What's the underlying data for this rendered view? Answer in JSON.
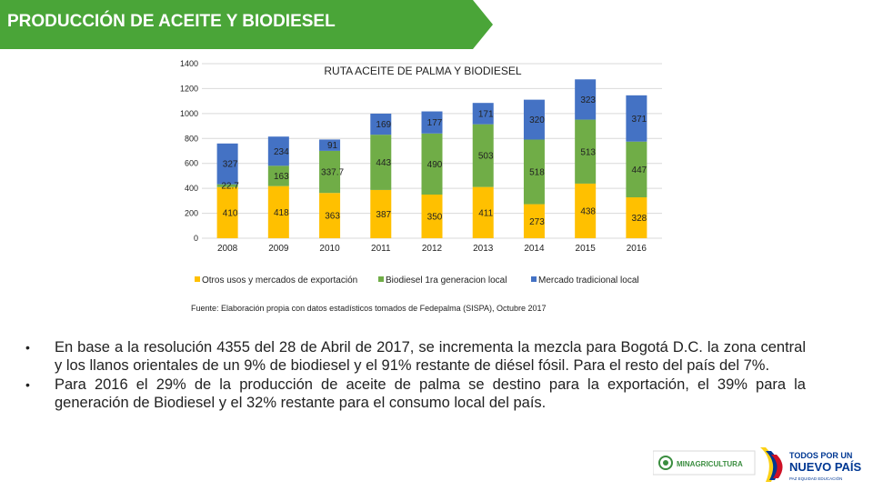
{
  "slide": {
    "title": "PRODUCCIÓN DE ACEITE Y BIODIESEL",
    "colors": {
      "title_bar": "#4aa538",
      "title_bar_light": "#7cc56a"
    }
  },
  "chart_data": {
    "type": "bar",
    "stacked": true,
    "title": "RUTA ACEITE DE PALMA Y BIODIESEL",
    "categories": [
      "2008",
      "2009",
      "2010",
      "2011",
      "2012",
      "2013",
      "2014",
      "2015",
      "2016"
    ],
    "series": [
      {
        "name": "Otros usos y mercados de exportación",
        "color": "#ffc000",
        "values": [
          410,
          418,
          363,
          387,
          350,
          411,
          273,
          438,
          328
        ]
      },
      {
        "name": "Biodiesel 1ra generacion local",
        "color": "#70ad47",
        "values": [
          22.7,
          163,
          337.7,
          443,
          490,
          503,
          518,
          513,
          447
        ]
      },
      {
        "name": "Mercado tradicional local",
        "color": "#4472c4",
        "values": [
          327,
          234,
          91,
          169,
          177,
          171,
          320,
          323,
          371
        ]
      }
    ],
    "value_labels": [
      [
        "410",
        "418",
        "363",
        "387",
        "350",
        "411",
        "273",
        "438",
        "328"
      ],
      [
        "22.7",
        "163",
        "337.7",
        "443",
        "490",
        "503",
        "518",
        "513",
        "447"
      ],
      [
        "327",
        "234",
        "91",
        "169",
        "177",
        "171",
        "320",
        "323",
        "371"
      ]
    ],
    "yticks": [
      0,
      200,
      400,
      600,
      800,
      1000,
      1200,
      1400
    ],
    "ylim": [
      0,
      1400
    ],
    "grid": true,
    "legend_position": "bottom",
    "xlabel": "",
    "ylabel": ""
  },
  "source": "Fuente: Elaboración propia con datos estadísticos tomados de Fedepalma (SISPA), Octubre 2017",
  "bullets": [
    "En base a la resolución 4355 del 28 de Abril de 2017, se incrementa la mezcla para Bogotá D.C. la zona central y los llanos orientales de un 9% de biodiesel y el 91% restante de diésel fósil. Para el resto del país del 7%.",
    "Para 2016 el 29% de la producción de aceite de palma se destino para la exportación, el 39% para la generación de Biodiesel y el 32% restante para el consumo local del país."
  ],
  "logos": {
    "minagricultura": "MINAGRICULTURA",
    "gobierno_line1": "TODOS POR UN",
    "gobierno_line2": "NUEVO PAÍS",
    "gobierno_line3": "PAZ  EQUIDAD  EDUCACIÓN",
    "colors": {
      "yellow": "#fcd116",
      "blue": "#003893",
      "red": "#ce1126",
      "green": "#3a8d3f"
    }
  }
}
